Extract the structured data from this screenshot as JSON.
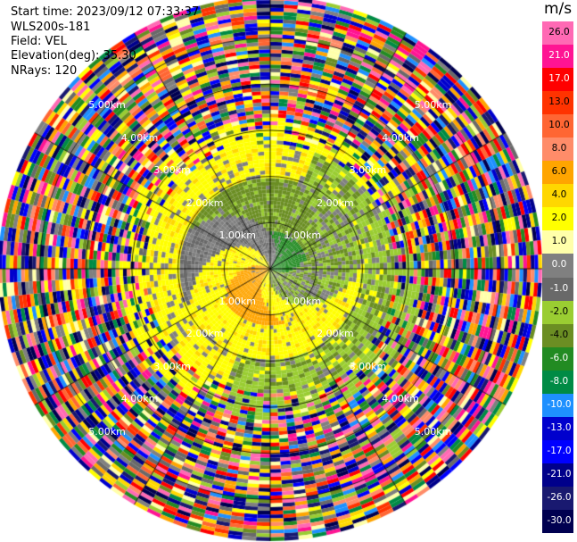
{
  "header": {
    "start_time": "Start time: 2023/09/12 07:33:37",
    "instrument": "WLS200s-181",
    "field": "Field: VEL",
    "elevation": "Elevation(deg): 35.30",
    "nrays": "NRays: 120"
  },
  "colorbar": {
    "unit": "m/s",
    "ticks": [
      "26.0",
      "21.0",
      "17.0",
      "13.0",
      "10.0",
      "8.0",
      "6.0",
      "4.0",
      "2.0",
      "1.0",
      "0.0",
      "-1.0",
      "-2.0",
      "-4.0",
      "-6.0",
      "-8.0",
      "-10.0",
      "-13.0",
      "-17.0",
      "-21.0",
      "-26.0",
      "-30.0"
    ],
    "colors": [
      "#ff69b4",
      "#ff1493",
      "#ff0000",
      "#ff3300",
      "#ff6633",
      "#ff8c69",
      "#ffa500",
      "#ffd700",
      "#ffff00",
      "#ffffaa",
      "#808080",
      "#696969",
      "#9acd32",
      "#6b8e23",
      "#228b22",
      "#008b45",
      "#1e90ff",
      "#0000cd",
      "#0000ff",
      "#00008b",
      "#191970",
      "#000050"
    ]
  },
  "range_labels": [
    "1.00km",
    "2.00km",
    "3.00km",
    "4.00km",
    "5.00km"
  ],
  "chart_data": {
    "type": "heatmap",
    "field": "VEL",
    "unit": "m/s",
    "nrays": 120,
    "range_rings_km": [
      1,
      2,
      3,
      4,
      5
    ],
    "max_range_km": 5.9,
    "spokes_deg": [
      0,
      30,
      60,
      90,
      120,
      150,
      180,
      210,
      240,
      270,
      300,
      330
    ],
    "pattern": "near-range (<2 km) bimodal wind: positive 1-4 m/s (yellow/orange) west sector, negative 1-6 m/s (green/grey) east and south; beyond ~2 km noisy values spanning -30 to 26 m/s"
  }
}
